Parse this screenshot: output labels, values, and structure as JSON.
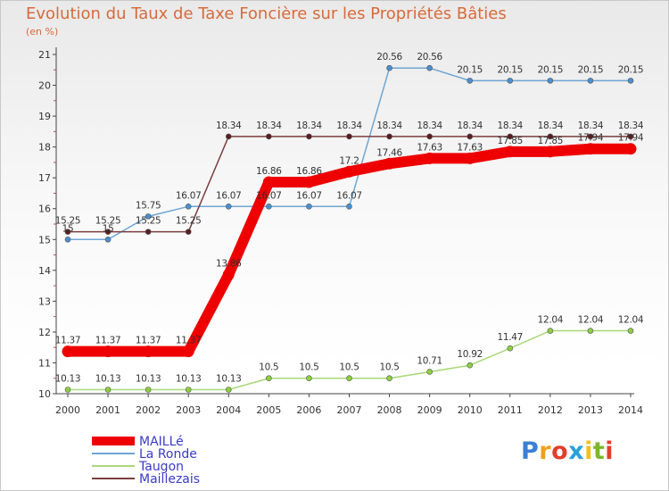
{
  "header": {
    "title": "Evolution du Taux de Taxe Foncière sur les Propriétés Bâties",
    "unit": "(en %)"
  },
  "logo": {
    "text": "Proxiti",
    "letters": [
      "P",
      "r",
      "o",
      "x",
      "i",
      "t",
      "i"
    ],
    "colors": [
      "#3a7fd5",
      "#f0a020",
      "#e0402a",
      "#2aa0d8",
      "#f0c020",
      "#7ab82a",
      "#e0402a"
    ]
  },
  "chart_data": {
    "type": "line",
    "x": [
      "2000",
      "2001",
      "2002",
      "2003",
      "2004",
      "2005",
      "2006",
      "2007",
      "2008",
      "2009",
      "2010",
      "2011",
      "2012",
      "2013",
      "2014"
    ],
    "ylim": [
      10,
      21
    ],
    "yticks": [
      "10",
      "11",
      "12",
      "13",
      "14",
      "15",
      "16",
      "17",
      "18",
      "19",
      "20",
      "21"
    ],
    "grid": false,
    "series": [
      {
        "name": "MAILLé",
        "color": "#ee0000",
        "width": 12,
        "marker": 6,
        "values": [
          11.37,
          11.37,
          11.37,
          11.37,
          13.86,
          16.86,
          16.86,
          17.2,
          17.46,
          17.63,
          17.63,
          17.85,
          17.85,
          17.94,
          17.94
        ],
        "labels": [
          "11.37",
          "11.37",
          "11.37",
          "11.37",
          "13.86",
          "16.86",
          "16.86",
          "17.2",
          "17.46",
          "17.63",
          "17.63",
          "17.85",
          "17.85",
          "17.94",
          "17.94"
        ]
      },
      {
        "name": "La Ronde",
        "color": "#6fa5d2",
        "width": 1.5,
        "marker": 3,
        "marker_fill": "#4a8fd0",
        "values": [
          15,
          15,
          15.75,
          16.07,
          16.07,
          16.07,
          16.07,
          16.07,
          20.56,
          20.56,
          20.15,
          20.15,
          20.15,
          20.15,
          20.15
        ],
        "labels": [
          "15",
          "15",
          "15.75",
          "16.07",
          "16.07",
          "16.07",
          "16.07",
          "16.07",
          "20.56",
          "20.56",
          "20.15",
          "20.15",
          "20.15",
          "20.15",
          "20.15"
        ]
      },
      {
        "name": "Taugon",
        "color": "#a8d878",
        "width": 1.5,
        "marker": 3,
        "marker_fill": "#8cd040",
        "values": [
          10.13,
          10.13,
          10.13,
          10.13,
          10.13,
          10.5,
          10.5,
          10.5,
          10.5,
          10.71,
          10.92,
          11.47,
          12.04,
          12.04,
          12.04
        ],
        "labels": [
          "10.13",
          "10.13",
          "10.13",
          "10.13",
          "10.13",
          "10.5",
          "10.5",
          "10.5",
          "10.5",
          "10.71",
          "10.92",
          "11.47",
          "12.04",
          "12.04",
          "12.04"
        ]
      },
      {
        "name": "Maillezais",
        "color": "#7a3e3e",
        "width": 1.5,
        "marker": 3,
        "marker_fill": "#5a1e1e",
        "values": [
          15.25,
          15.25,
          15.25,
          15.25,
          18.34,
          18.34,
          18.34,
          18.34,
          18.34,
          18.34,
          18.34,
          18.34,
          18.34,
          18.34,
          18.34
        ],
        "labels": [
          "15.25",
          "15.25",
          "15.25",
          "15.25",
          "18.34",
          "18.34",
          "18.34",
          "18.34",
          "18.34",
          "18.34",
          "18.34",
          "18.34",
          "18.34",
          "18.34",
          "18.34"
        ]
      }
    ]
  }
}
